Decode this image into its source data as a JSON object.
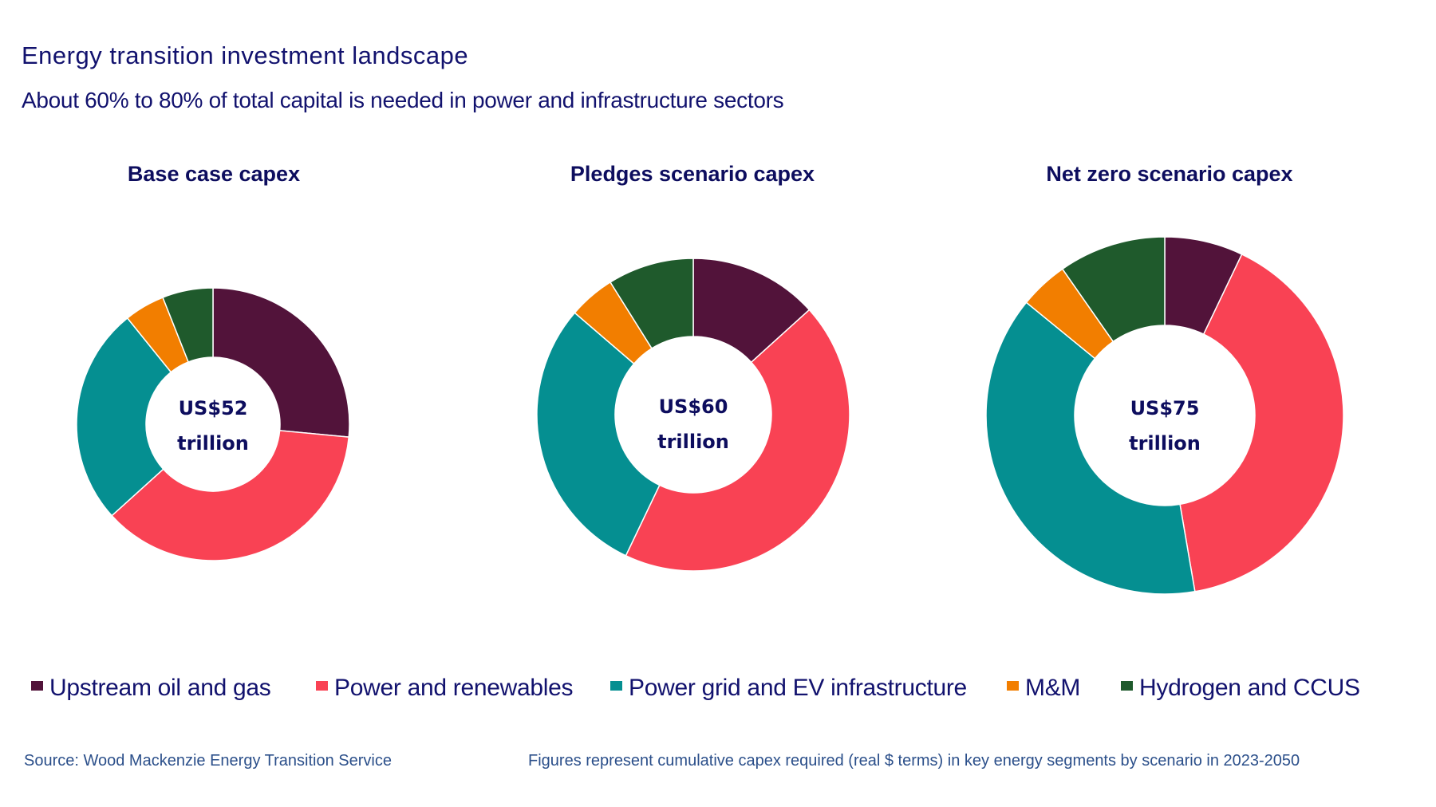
{
  "header": {
    "title": "Energy transition investment landscape",
    "subtitle": "About 60% to 80% of total capital is needed in power and infrastructure sectors"
  },
  "colors": {
    "upstream": "#52133A",
    "power": "#F94254",
    "grid": "#058F91",
    "mm": "#F27E00",
    "hydrogen": "#1F5A2C",
    "text": "#12126E",
    "footer": "#2B4F8A"
  },
  "chart_data": [
    {
      "type": "pie",
      "variant": "donut",
      "title": "Base case capex",
      "center_label": [
        "US$52",
        "trillion"
      ],
      "total": 52,
      "unit": "US$ trillion",
      "categories": [
        "Upstream oil and gas",
        "Power and renewables",
        "Power grid and EV infrastructure",
        "M&M",
        "Hydrogen and CCUS"
      ],
      "values_pct": [
        26.5,
        36.8,
        25.9,
        4.8,
        6.0
      ]
    },
    {
      "type": "pie",
      "variant": "donut",
      "title": "Pledges scenario capex",
      "center_label": [
        "US$60",
        "trillion"
      ],
      "total": 60,
      "unit": "US$ trillion",
      "categories": [
        "Upstream oil and gas",
        "Power and renewables",
        "Power grid and EV infrastructure",
        "M&M",
        "Hydrogen and CCUS"
      ],
      "values_pct": [
        13.3,
        43.8,
        29.2,
        4.8,
        8.9
      ]
    },
    {
      "type": "pie",
      "variant": "donut",
      "title": "Net zero scenario capex",
      "center_label": [
        "US$75",
        "trillion"
      ],
      "total": 75,
      "unit": "US$ trillion",
      "categories": [
        "Upstream oil and gas",
        "Power and renewables",
        "Power grid and EV infrastructure",
        "M&M",
        "Hydrogen and CCUS"
      ],
      "values_pct": [
        7.1,
        40.2,
        38.6,
        4.4,
        9.7
      ]
    }
  ],
  "legend": {
    "placement": "bottom",
    "items": [
      {
        "label": "Upstream oil and gas",
        "color": "#52133A"
      },
      {
        "label": "Power and renewables",
        "color": "#F94254"
      },
      {
        "label": "Power grid and EV infrastructure",
        "color": "#058F91"
      },
      {
        "label": "M&M",
        "color": "#F27E00"
      },
      {
        "label": "Hydrogen and CCUS",
        "color": "#1F5A2C"
      }
    ]
  },
  "footer": {
    "source": "Source:  Wood Mackenzie Energy  Transition Service",
    "note": "Figures represent  cumulative capex required (real $ terms)  in key  energy  segments by scenario in 2023-2050"
  }
}
